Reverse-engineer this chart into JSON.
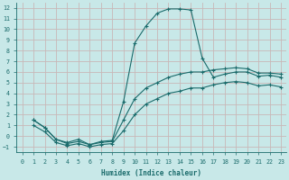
{
  "background_color": "#c8e8e8",
  "grid_color": "#c8b8b8",
  "line_color": "#1a6b6b",
  "marker": "+",
  "xlabel": "Humidex (Indice chaleur)",
  "xlim": [
    -0.5,
    23.5
  ],
  "ylim": [
    -1.5,
    12.5
  ],
  "xticks": [
    0,
    1,
    2,
    3,
    4,
    5,
    6,
    7,
    8,
    9,
    10,
    11,
    12,
    13,
    14,
    15,
    16,
    17,
    18,
    19,
    20,
    21,
    22,
    23
  ],
  "yticks": [
    -1,
    0,
    1,
    2,
    3,
    4,
    5,
    6,
    7,
    8,
    9,
    10,
    11,
    12
  ],
  "curve1_x": [
    1,
    2,
    3,
    4,
    5,
    6,
    7,
    8,
    9,
    10,
    11,
    12,
    13,
    14,
    15,
    16,
    17,
    18,
    19,
    20,
    21,
    22,
    23
  ],
  "curve1_y": [
    1.5,
    0.8,
    -0.3,
    -0.6,
    -0.3,
    -0.8,
    -0.5,
    -0.4,
    3.2,
    8.7,
    10.3,
    11.5,
    11.9,
    11.9,
    11.8,
    7.3,
    5.5,
    5.8,
    6.0,
    6.0,
    5.6,
    5.7,
    5.5
  ],
  "curve2_x": [
    1,
    2,
    3,
    4,
    5,
    6,
    7,
    8,
    9,
    10,
    11,
    12,
    13,
    14,
    15,
    16,
    17,
    18,
    19,
    20,
    21,
    22,
    23
  ],
  "curve2_y": [
    1.5,
    0.8,
    -0.3,
    -0.7,
    -0.5,
    -0.8,
    -0.6,
    -0.5,
    1.5,
    3.5,
    4.5,
    5.0,
    5.5,
    5.8,
    6.0,
    6.0,
    6.2,
    6.3,
    6.4,
    6.3,
    5.9,
    5.9,
    5.8
  ],
  "curve3_x": [
    1,
    2,
    3,
    4,
    5,
    6,
    7,
    8,
    9,
    10,
    11,
    12,
    13,
    14,
    15,
    16,
    17,
    18,
    19,
    20,
    21,
    22,
    23
  ],
  "curve3_y": [
    1.0,
    0.4,
    -0.6,
    -0.9,
    -0.7,
    -1.0,
    -0.8,
    -0.7,
    0.5,
    2.0,
    3.0,
    3.5,
    4.0,
    4.2,
    4.5,
    4.5,
    4.8,
    5.0,
    5.1,
    5.0,
    4.7,
    4.8,
    4.6
  ]
}
